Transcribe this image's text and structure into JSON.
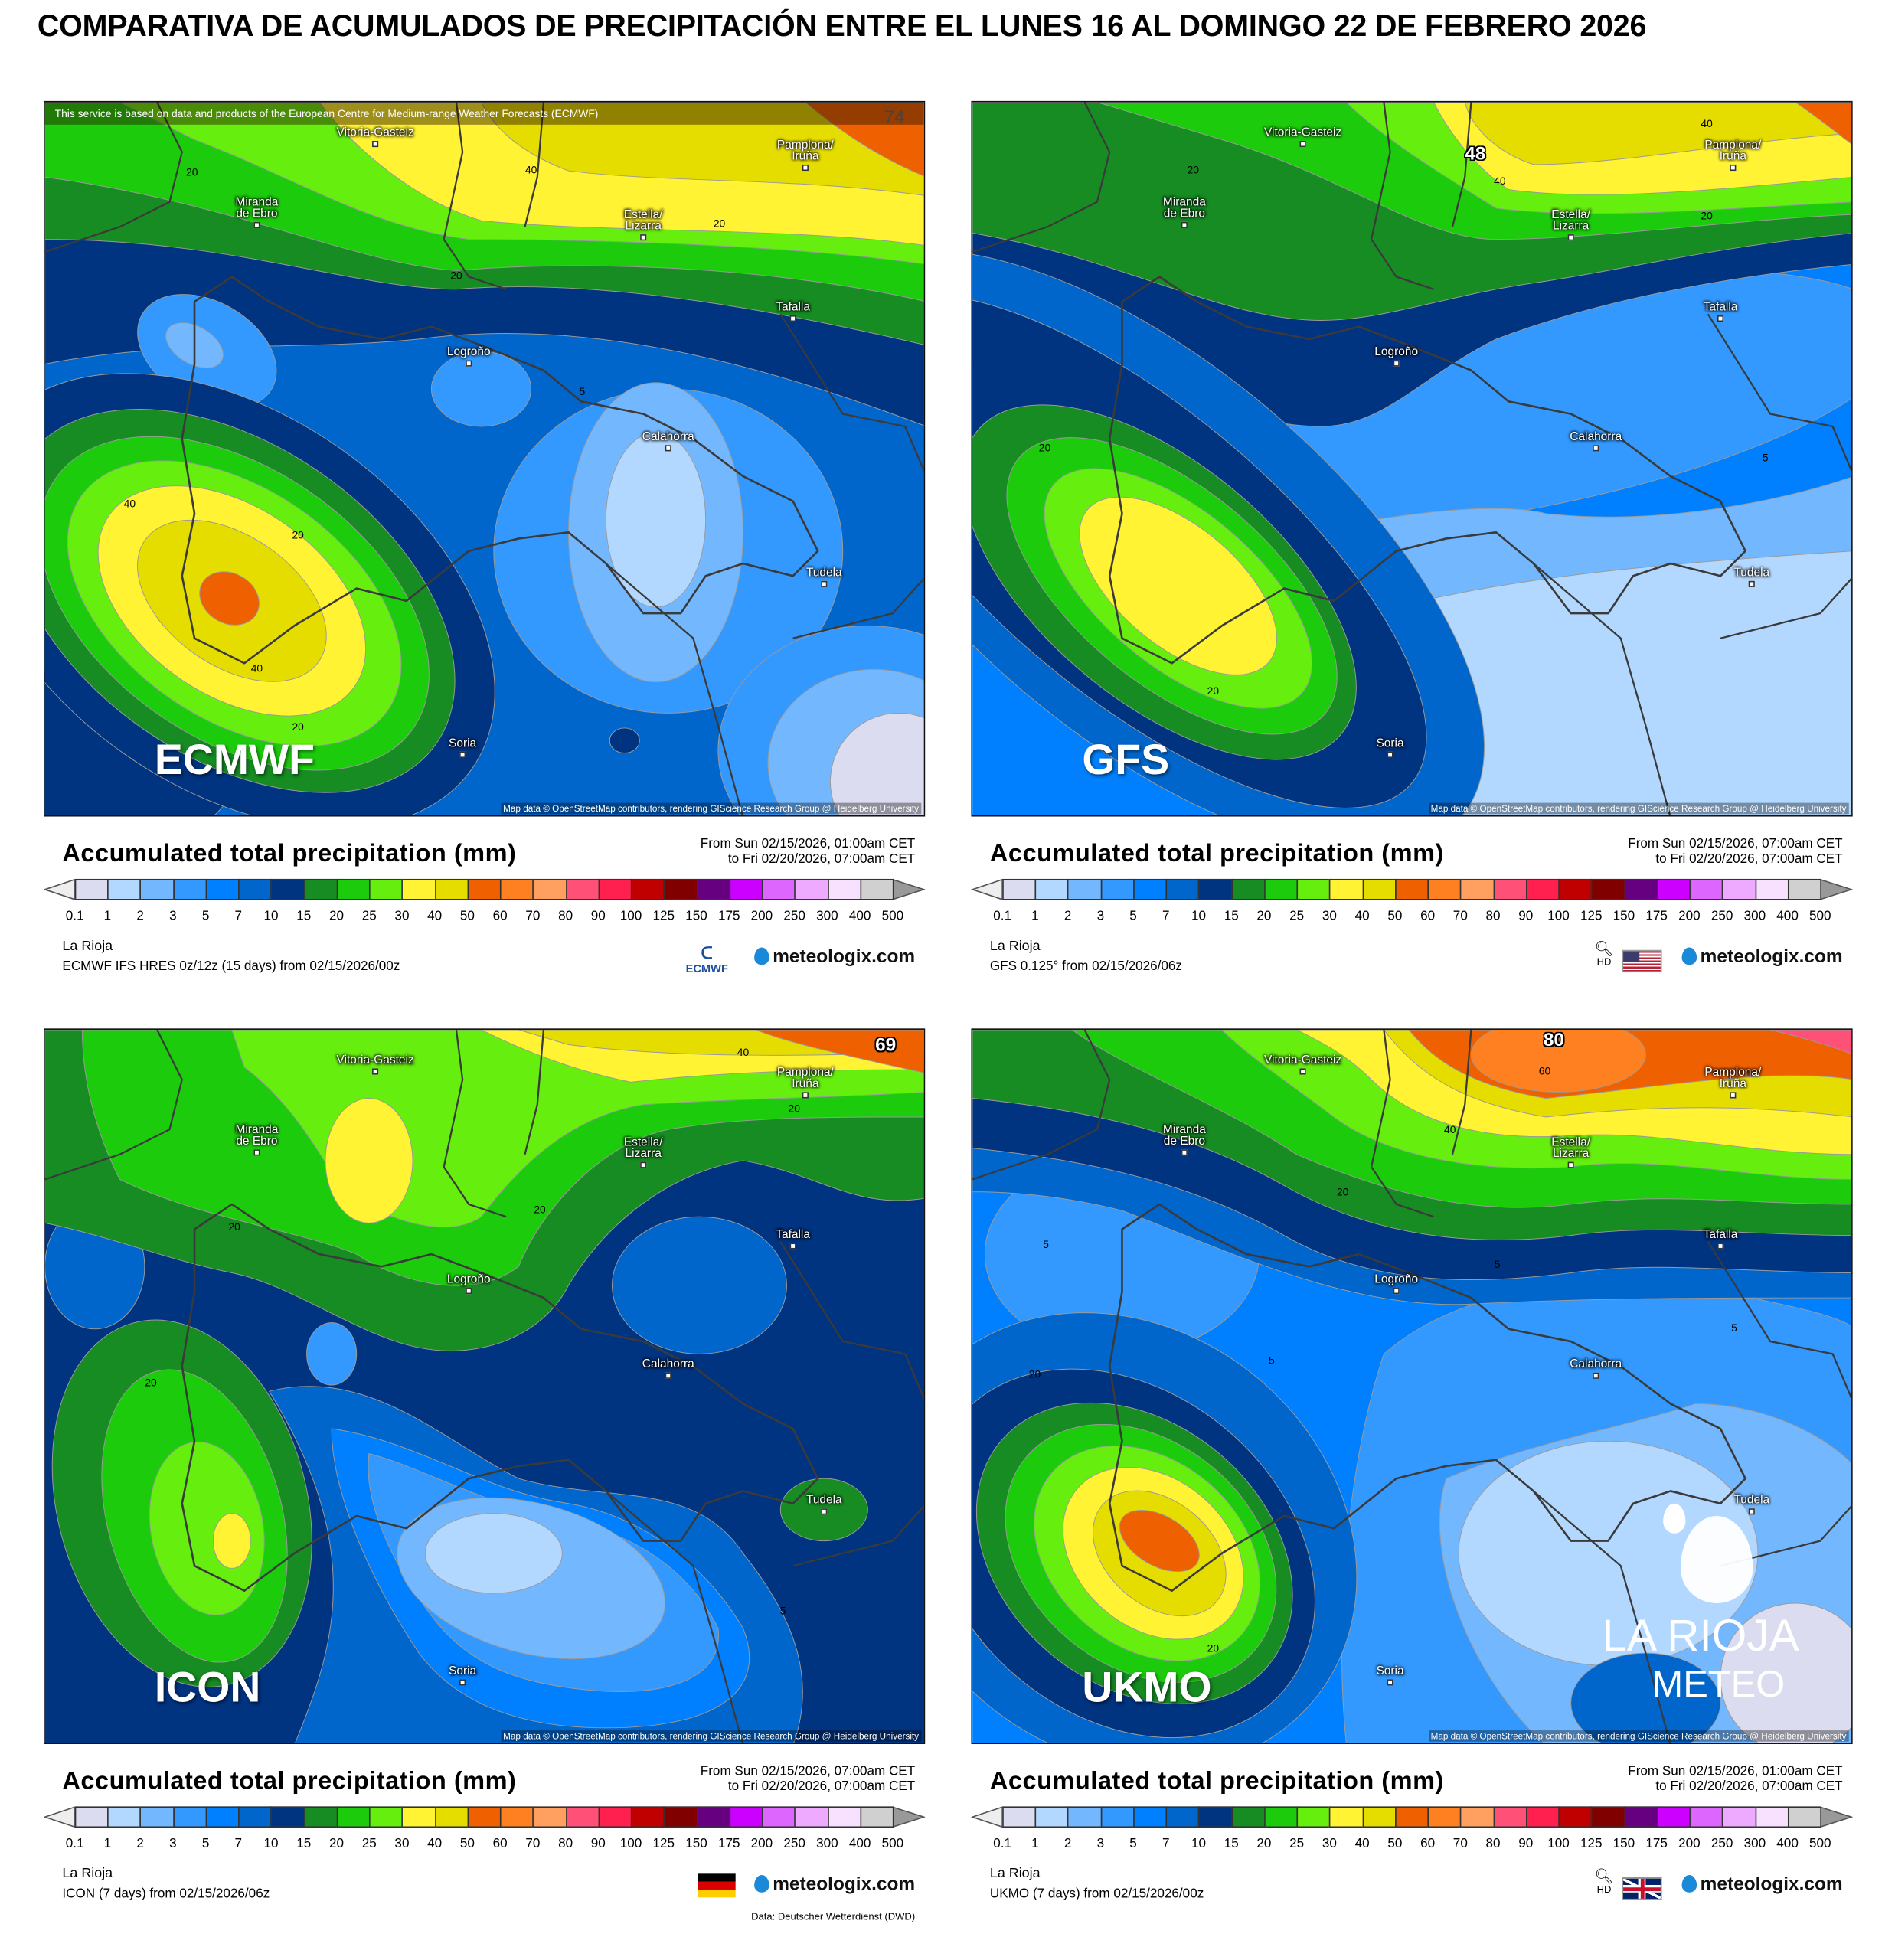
{
  "title": "COMPARATIVA DE ACUMULADOS DE PRECIPITACIÓN ENTRE EL LUNES 16 AL DOMINGO 22 DE FEBRERO 2026",
  "cities": [
    "Vitoria-Gasteiz",
    "Miranda\nde Ebro",
    "Pamplona/\nIruña",
    "Estella/\nLizarra",
    "Tafalla",
    "Logroño",
    "Calahorra",
    "Tudela",
    "Soria"
  ],
  "legend": {
    "labels": [
      "0.1",
      "1",
      "2",
      "3",
      "5",
      "7",
      "10",
      "15",
      "20",
      "25",
      "30",
      "40",
      "50",
      "60",
      "70",
      "80",
      "90",
      "100",
      "125",
      "150",
      "175",
      "200",
      "250",
      "300",
      "400",
      "500"
    ],
    "colors": [
      "#dcdcf0",
      "#b3d8ff",
      "#73b8ff",
      "#3399ff",
      "#0080ff",
      "#0066cc",
      "#003380",
      "#168c22",
      "#1ccc0c",
      "#66ee0f",
      "#fff333",
      "#e6dd00",
      "#ee6000",
      "#ff8020",
      "#ffa060",
      "#ff5078",
      "#ff2050",
      "#c00000",
      "#800000",
      "#660080",
      "#cc00ff",
      "#dd66ff",
      "#eeaaff",
      "#f8e0ff",
      "#d0d0d0"
    ]
  },
  "watermark": {
    "line1": "LA RIOJA",
    "line2": "METEO"
  },
  "panels": [
    {
      "model_label": "ECMWF",
      "max_value": "74",
      "top_notice": "This service is based on data and products of the European Centre for Medium-range Weather Forecasts (ECMWF)",
      "attribution": "Map data © OpenStreetMap contributors, rendering GIScience Research Group @ Heidelberg University",
      "legend_title": "Accumulated total precipitation (mm)",
      "period_from": "From Sun 02/15/2026, 01:00am CET",
      "period_to": "to Fri 02/20/2026, 07:00am CET",
      "region": "La Rioja",
      "run": "ECMWF IFS HRES 0z/12z (15 days) from  02/15/2026/00z",
      "logo": "meteologix.com",
      "extra_logo": "ECMWF",
      "contour_labels": [
        "20",
        "40",
        "20",
        "20",
        "5",
        "40",
        "20",
        "40",
        "20"
      ]
    },
    {
      "model_label": "GFS",
      "max_value": "48",
      "attribution": "Map data © OpenStreetMap contributors, rendering GIScience Research Group @ Heidelberg University",
      "legend_title": "Accumulated total precipitation (mm)",
      "period_from": "From Sun 02/15/2026, 07:00am CET",
      "period_to": "to Fri 02/20/2026, 07:00am CET",
      "region": "La Rioja",
      "run": "GFS 0.125° from  02/15/2026/06z",
      "logo": "meteologix.com",
      "extra_logo": "HD",
      "contour_labels": [
        "20",
        "40",
        "40",
        "20",
        "5",
        "20",
        "20"
      ]
    },
    {
      "model_label": "ICON",
      "max_value": "69",
      "attribution": "Map data © OpenStreetMap contributors, rendering GIScience Research Group @ Heidelberg University",
      "legend_title": "Accumulated total precipitation (mm)",
      "period_from": "From Sun 02/15/2026, 07:00am CET",
      "period_to": "to Fri 02/20/2026, 07:00am CET",
      "region": "La Rioja",
      "run": "ICON (7 days) from  02/15/2026/06z",
      "logo": "meteologix.com",
      "data_source": "Data: Deutscher Wetterdienst (DWD)",
      "contour_labels": [
        "40",
        "20",
        "20",
        "20",
        "20",
        "5"
      ]
    },
    {
      "model_label": "UKMO",
      "max_value": "80",
      "attribution": "Map data © OpenStreetMap contributors, rendering GIScience Research Group @ Heidelberg University",
      "legend_title": "Accumulated total precipitation (mm)",
      "period_from": "From Sun 02/15/2026, 01:00am CET",
      "period_to": "to Fri 02/20/2026, 07:00am CET",
      "region": "La Rioja",
      "run": "UKMO (7 days) from  02/15/2026/00z",
      "logo": "meteologix.com",
      "extra_logo": "HD",
      "contour_labels": [
        "60",
        "40",
        "20",
        "5",
        "5",
        "5",
        "5",
        "20",
        "20"
      ]
    }
  ]
}
